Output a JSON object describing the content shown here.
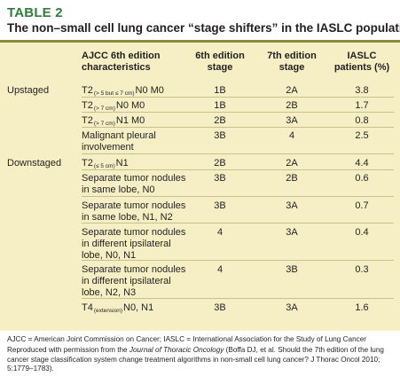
{
  "table_label": "TABLE 2",
  "title": "The non–small cell lung cancer “stage shifters” in the IASLC population",
  "columns": {
    "characteristics": [
      "AJCC 6th edition",
      "characteristics"
    ],
    "sixth": [
      "6th edition",
      "stage"
    ],
    "seventh": [
      "7th edition",
      "stage"
    ],
    "patients": [
      "IASLC",
      "patients (%)"
    ]
  },
  "groups": {
    "upstaged": "Upstaged",
    "downstaged": "Downstaged"
  },
  "rows": [
    {
      "t": "T2",
      "sub": "(> 5 but ≤ 7 cm)",
      "rest": "N0 M0",
      "sixth": "1B",
      "seventh": "2A",
      "pct": "3.8"
    },
    {
      "t": "T2",
      "sub": "(> 7 cm)",
      "rest": "N0 M0",
      "sixth": "1B",
      "seventh": "2B",
      "pct": "1.7"
    },
    {
      "t": "T2",
      "sub": "(> 7 cm)",
      "rest": "N1 M0",
      "sixth": "2B",
      "seventh": "3A",
      "pct": "0.8"
    },
    {
      "lines": [
        "Malignant pleural",
        "involvement"
      ],
      "sixth": "3B",
      "seventh": "4",
      "pct": "2.5"
    },
    {
      "t": "T2",
      "sub": "(≤ 5 cm)",
      "rest": "N1",
      "sixth": "2B",
      "seventh": "2A",
      "pct": "4.4"
    },
    {
      "lines": [
        "Separate tumor nodules",
        "in same lobe, N0"
      ],
      "sixth": "3B",
      "seventh": "2B",
      "pct": "0.6"
    },
    {
      "lines": [
        "Separate tumor nodules",
        "in same lobe, N1, N2"
      ],
      "sixth": "3B",
      "seventh": "3A",
      "pct": "0.7"
    },
    {
      "lines": [
        "Separate tumor nodules",
        "in different ipsilateral",
        "lobe, N0, N1"
      ],
      "sixth": "4",
      "seventh": "3A",
      "pct": "0.4"
    },
    {
      "lines": [
        "Separate tumor nodules",
        "in different ipsilateral",
        "lobe, N2, N3"
      ],
      "sixth": "4",
      "seventh": "3B",
      "pct": "0.3"
    },
    {
      "t": "T4",
      "sub": "(extension)",
      "rest": "N0, N1",
      "sixth": "3B",
      "seventh": "3A",
      "pct": "1.6"
    }
  ],
  "footnotes": {
    "abbrev": "AJCC = American Joint Commission on Cancer; IASLC = International Association for the Study of Lung Cancer",
    "permission_pre": "Reproduced with permission from the ",
    "journal": "Journal of Thoracic Oncology",
    "permission_post": " (Boffa DJ, et al. Should the 7th edition of the lung cancer stage classification system change treatment algorithms in non-small cell lung cancer? J Thorac Oncol 2010; 5:1779–1783)."
  }
}
